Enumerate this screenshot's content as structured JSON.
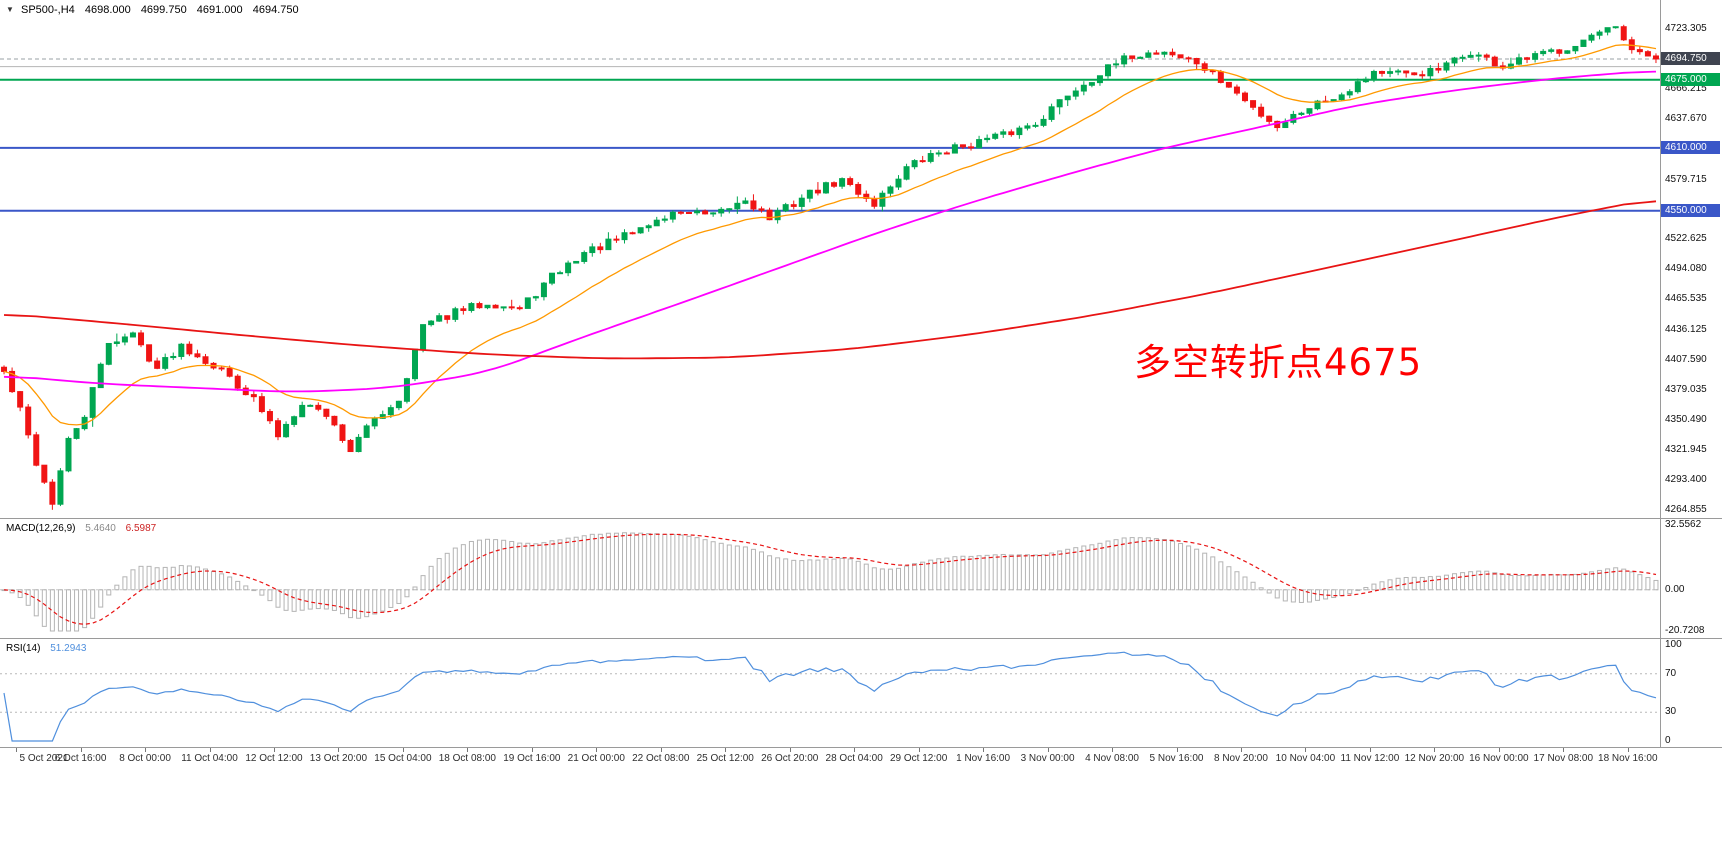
{
  "header": {
    "marker": "▼",
    "symbol": "SP500-,H4",
    "open": "4698.000",
    "high": "4699.750",
    "low": "4691.000",
    "close": "4694.750"
  },
  "annotation": {
    "text": "多空转折点4675",
    "color": "#ff0000"
  },
  "indicators": {
    "macd": {
      "label": "MACD(12,26,9)",
      "value1": "5.4640",
      "value2": "6.5987",
      "axis": [
        "32.5562",
        "0.00",
        "-20.7208"
      ]
    },
    "rsi": {
      "label": "RSI(14)",
      "value": "51.2943",
      "axis": [
        "100",
        "70",
        "30",
        "0"
      ]
    }
  },
  "chart_data": {
    "type": "candlestick",
    "symbol": "SP500-",
    "timeframe": "H4",
    "bar_count": 206,
    "price_range": [
      4258,
      4751
    ],
    "price_axis_labels": [
      "4723.305",
      "4666.215",
      "4637.670",
      "4579.715",
      "4522.625",
      "4494.080",
      "4465.535",
      "4436.125",
      "4407.590",
      "4379.035",
      "4350.490",
      "4321.945",
      "4293.400",
      "4264.855"
    ],
    "time_labels": [
      "5 Oct 2021",
      "6 Oct 16:00",
      "8 Oct 00:00",
      "11 Oct 04:00",
      "12 Oct 12:00",
      "13 Oct 20:00",
      "15 Oct 04:00",
      "18 Oct 08:00",
      "19 Oct 16:00",
      "21 Oct 00:00",
      "22 Oct 08:00",
      "25 Oct 12:00",
      "26 Oct 20:00",
      "28 Oct 04:00",
      "29 Oct 12:00",
      "1 Nov 16:00",
      "3 Nov 00:00",
      "4 Nov 08:00",
      "5 Nov 16:00",
      "8 Nov 20:00",
      "10 Nov 04:00",
      "11 Nov 12:00",
      "12 Nov 20:00",
      "16 Nov 00:00",
      "17 Nov 08:00",
      "18 Nov 16:00"
    ],
    "candles_close_anchors": [
      [
        0,
        4396
      ],
      [
        2,
        4360
      ],
      [
        4,
        4310
      ],
      [
        6,
        4272
      ],
      [
        8,
        4330
      ],
      [
        10,
        4355
      ],
      [
        13,
        4425
      ],
      [
        16,
        4432
      ],
      [
        19,
        4400
      ],
      [
        22,
        4422
      ],
      [
        25,
        4408
      ],
      [
        28,
        4392
      ],
      [
        31,
        4370
      ],
      [
        34,
        4336
      ],
      [
        37,
        4368
      ],
      [
        40,
        4356
      ],
      [
        43,
        4322
      ],
      [
        46,
        4352
      ],
      [
        49,
        4370
      ],
      [
        52,
        4440
      ],
      [
        56,
        4453
      ],
      [
        60,
        4463
      ],
      [
        64,
        4456
      ],
      [
        68,
        4487
      ],
      [
        72,
        4510
      ],
      [
        76,
        4522
      ],
      [
        80,
        4537
      ],
      [
        84,
        4550
      ],
      [
        88,
        4544
      ],
      [
        92,
        4561
      ],
      [
        95,
        4543
      ],
      [
        100,
        4567
      ],
      [
        104,
        4579
      ],
      [
        108,
        4557
      ],
      [
        112,
        4591
      ],
      [
        116,
        4606
      ],
      [
        120,
        4614
      ],
      [
        124,
        4622
      ],
      [
        128,
        4634
      ],
      [
        132,
        4661
      ],
      [
        136,
        4681
      ],
      [
        140,
        4698
      ],
      [
        144,
        4702
      ],
      [
        148,
        4691
      ],
      [
        152,
        4668
      ],
      [
        155,
        4648
      ],
      [
        158,
        4631
      ],
      [
        162,
        4650
      ],
      [
        166,
        4662
      ],
      [
        170,
        4683
      ],
      [
        174,
        4679
      ],
      [
        178,
        4684
      ],
      [
        182,
        4701
      ],
      [
        186,
        4687
      ],
      [
        190,
        4697
      ],
      [
        194,
        4706
      ],
      [
        197,
        4716
      ],
      [
        200,
        4723
      ],
      [
        202,
        4701
      ],
      [
        205,
        4694.75
      ]
    ],
    "noise": {
      "seed": 42,
      "wiggle": 4,
      "wick": 4
    },
    "extremes": {
      "high_bar": 200,
      "high": 4723.305,
      "low_bar": 6,
      "low": 4264.855
    },
    "colors": {
      "up": "#00a651",
      "down": "#f01414"
    },
    "horizontal_lines": [
      {
        "price": 4687.5,
        "color": "#b5b5b5",
        "tag": null,
        "width": 1
      },
      {
        "price": 4675.0,
        "color": "#00a651",
        "tag": "4675.000",
        "width": 2
      },
      {
        "price": 4610.0,
        "color": "#3a57c8",
        "tag": "4610.000",
        "width": 2
      },
      {
        "price": 4550.0,
        "color": "#3a57c8",
        "tag": "4550.000",
        "width": 2
      }
    ],
    "current_price": {
      "value": 4694.75,
      "tag": "4694.750",
      "tag_color": "#3f4450"
    },
    "moving_averages": [
      {
        "name": "fast",
        "color": "#ff9900",
        "type": "ema",
        "period": 16,
        "width": 1.3
      },
      {
        "name": "mid",
        "color": "#ff00ff",
        "type": "anchors",
        "width": 1.8,
        "points": [
          [
            0,
            4393
          ],
          [
            12,
            4385
          ],
          [
            24,
            4381
          ],
          [
            36,
            4377
          ],
          [
            48,
            4381
          ],
          [
            60,
            4396
          ],
          [
            72,
            4430
          ],
          [
            84,
            4462
          ],
          [
            96,
            4495
          ],
          [
            108,
            4528
          ],
          [
            120,
            4558
          ],
          [
            132,
            4585
          ],
          [
            144,
            4610
          ],
          [
            156,
            4630
          ],
          [
            168,
            4651
          ],
          [
            180,
            4665
          ],
          [
            192,
            4676
          ],
          [
            205,
            4684
          ]
        ]
      },
      {
        "name": "slow",
        "color": "#e81414",
        "type": "anchors",
        "width": 1.8,
        "points": [
          [
            0,
            4452
          ],
          [
            15,
            4442
          ],
          [
            30,
            4431
          ],
          [
            45,
            4421
          ],
          [
            60,
            4413
          ],
          [
            75,
            4409
          ],
          [
            90,
            4410
          ],
          [
            105,
            4418
          ],
          [
            120,
            4432
          ],
          [
            135,
            4450
          ],
          [
            150,
            4472
          ],
          [
            165,
            4497
          ],
          [
            180,
            4522
          ],
          [
            193,
            4544
          ],
          [
            205,
            4562
          ]
        ]
      }
    ],
    "macd": {
      "fast": 12,
      "slow": 26,
      "signal": 9,
      "range": [
        -20.7208,
        32.5562
      ],
      "hist_color": "#b4b4b4",
      "signal_color": "#e81414"
    },
    "rsi": {
      "period": 14,
      "color": "#4f8fdd",
      "range": [
        0,
        100
      ],
      "levels": [
        70,
        30
      ]
    }
  }
}
